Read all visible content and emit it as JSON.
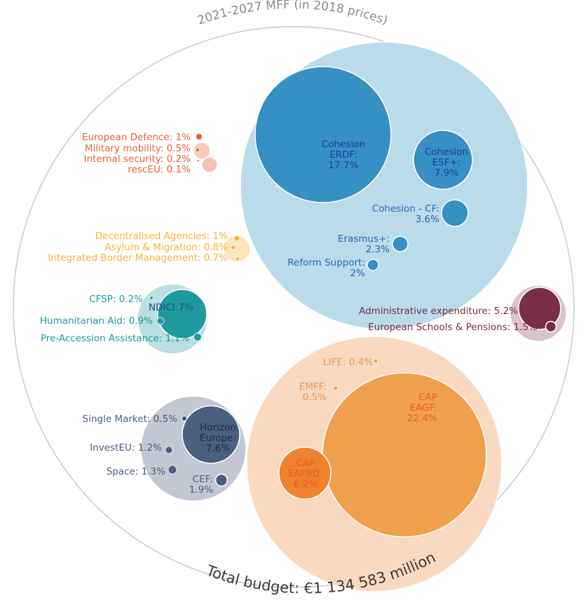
{
  "chart_data": {
    "type": "bubble-pack",
    "title": "2021-2027 MFF (in 2018 prices)",
    "total": "Total budget: €1 134 583 million",
    "groups": [
      {
        "name": "cohesion-values",
        "color": "#b9dbea",
        "items": [
          {
            "lines": [
              "Cohesion",
              "ERDF:",
              "17.7%"
            ],
            "value": 17.7,
            "color": "#3690c4",
            "text": "#1f3d9e"
          },
          {
            "lines": [
              "Cohesion",
              "ESF+:",
              "7.9%"
            ],
            "value": 7.9,
            "color": "#3690c4",
            "text": "#1f3d9e"
          },
          {
            "lines": [
              "Cohesion - CF:",
              "3.6%"
            ],
            "value": 3.6,
            "color": "#3690c4",
            "text": "#2f67b5"
          },
          {
            "lines": [
              "Erasmus+:",
              "2.3%"
            ],
            "value": 2.3,
            "color": "#3690c4",
            "text": "#2f67b5"
          },
          {
            "lines": [
              "Reform Support:",
              "2%"
            ],
            "value": 2.0,
            "color": "#3690c4",
            "text": "#2f67b5"
          }
        ]
      },
      {
        "name": "natural-resources",
        "color": "#f9d9c0",
        "items": [
          {
            "lines": [
              "CAP",
              "EAGF:",
              "22.4%"
            ],
            "value": 22.4,
            "color": "#f0a04d",
            "text": "#e8611e"
          },
          {
            "lines": [
              "CAP",
              "EAFRD:",
              "6.2%"
            ],
            "value": 6.2,
            "color": "#f0822e",
            "text": "#e8611e"
          },
          {
            "lines": [
              "EMFF:",
              "0.5%"
            ],
            "value": 0.5,
            "color": "#f0a04d",
            "text": "#e89a55"
          },
          {
            "lines": [
              "LIFE: 0.4%"
            ],
            "value": 0.4,
            "color": "#f0a04d",
            "text": "#e89a55"
          }
        ]
      },
      {
        "name": "single-market",
        "color": "#c2c8d2",
        "items": [
          {
            "lines": [
              "Horizon",
              "Europe:",
              "7.6%"
            ],
            "value": 7.6,
            "color": "#4b5f7e",
            "text": "#1f2d4a"
          },
          {
            "lines": [
              "Single Market: 0.5%"
            ],
            "value": 0.5,
            "color": "#4b5f7e",
            "text": "#4b5f7e"
          },
          {
            "lines": [
              "InvestEU: 1.2%"
            ],
            "value": 1.2,
            "color": "#4b5f7e",
            "text": "#4b5f7e"
          },
          {
            "lines": [
              "Space: 1.3%"
            ],
            "value": 1.3,
            "color": "#4b5f7e",
            "text": "#4b5f7e"
          },
          {
            "lines": [
              "CEF:",
              "1.9%"
            ],
            "value": 1.9,
            "color": "#4b5f7e",
            "text": "#4b5f7e"
          }
        ]
      },
      {
        "name": "neighbourhood-world",
        "color": "#b9dfe0",
        "items": [
          {
            "lines": [
              "NDICI:7%"
            ],
            "value": 7.0,
            "color": "#1e9a9f",
            "text": "#1f4a7a"
          },
          {
            "lines": [
              "CFSP: 0.2%"
            ],
            "value": 0.2,
            "color": "#1e9a9f",
            "text": "#1e9a9f"
          },
          {
            "lines": [
              "Humanitarian Aid: 0.9%"
            ],
            "value": 0.9,
            "color": "#1e9a9f",
            "text": "#1e9a9f"
          },
          {
            "lines": [
              "Pre-Accession Assistance: 1.1%"
            ],
            "value": 1.1,
            "color": "#1e9a9f",
            "text": "#1e9a9f"
          }
        ]
      },
      {
        "name": "migration-border",
        "color": "#fbe6bb",
        "items": [
          {
            "lines": [
              "Decentralised Agencies: 1%"
            ],
            "value": 1.0,
            "color": "#f0b63a",
            "text": "#f0b63a"
          },
          {
            "lines": [
              "Asylum & Migration: 0.8%"
            ],
            "value": 0.8,
            "color": "#f0b63a",
            "text": "#f0b63a"
          },
          {
            "lines": [
              "Integrated Border Management: 0.7%"
            ],
            "value": 0.7,
            "color": "#f0b63a",
            "text": "#f0b63a"
          }
        ]
      },
      {
        "name": "security-defence",
        "color": "#f7cbbf",
        "items": [
          {
            "lines": [
              "European Defence: 1%"
            ],
            "value": 1.0,
            "color": "#e8613a",
            "text": "#e8613a"
          },
          {
            "lines": [
              "Military mobility: 0.5%"
            ],
            "value": 0.5,
            "color": "#e8613a",
            "text": "#e8613a"
          },
          {
            "lines": [
              "Internal security: 0.2%"
            ],
            "value": 0.2,
            "color": "#e8613a",
            "text": "#e8613a"
          },
          {
            "lines": [
              "rescEU: 0.1%"
            ],
            "value": 0.1,
            "color": "#e8613a",
            "text": "#e8613a"
          }
        ]
      },
      {
        "name": "administration",
        "color": "#dcc2ca",
        "items": [
          {
            "lines": [
              "Administrative expenditure: 5.2%"
            ],
            "value": 5.2,
            "color": "#7a2d45",
            "text": "#7a2d45"
          },
          {
            "lines": [
              "European Schools & Pensions: 1.5%"
            ],
            "value": 1.5,
            "color": "#7a2d45",
            "text": "#7a2d45"
          }
        ]
      }
    ]
  }
}
